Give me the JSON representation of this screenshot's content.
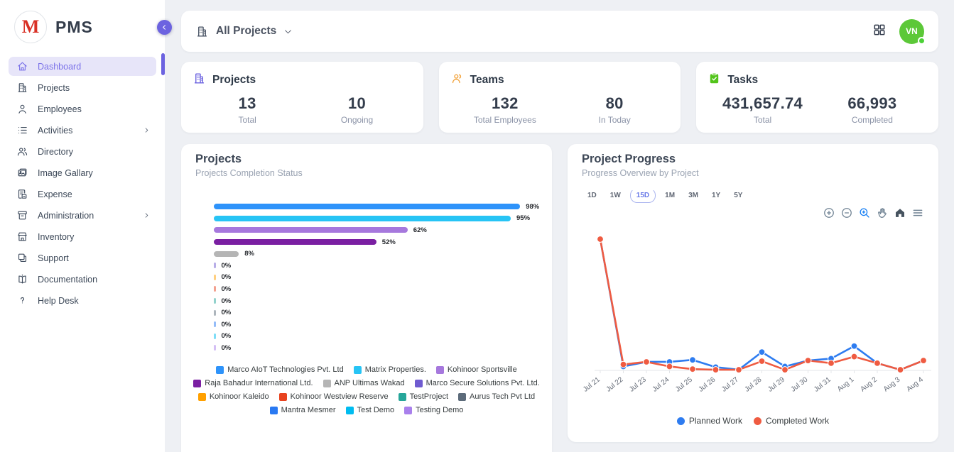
{
  "app": {
    "name": "PMS",
    "logo_letter": "M"
  },
  "sidebar": {
    "items": [
      {
        "label": "Dashboard",
        "icon": "home-icon",
        "active": true,
        "submenu": false
      },
      {
        "label": "Projects",
        "icon": "building-icon",
        "active": false,
        "submenu": false
      },
      {
        "label": "Employees",
        "icon": "person-icon",
        "active": false,
        "submenu": false
      },
      {
        "label": "Activities",
        "icon": "list-icon",
        "active": false,
        "submenu": true
      },
      {
        "label": "Directory",
        "icon": "people-icon",
        "active": false,
        "submenu": false
      },
      {
        "label": "Image Gallary",
        "icon": "image-icon",
        "active": false,
        "submenu": false
      },
      {
        "label": "Expense",
        "icon": "receipt-icon",
        "active": false,
        "submenu": false
      },
      {
        "label": "Administration",
        "icon": "archive-icon",
        "active": false,
        "submenu": true
      },
      {
        "label": "Inventory",
        "icon": "store-icon",
        "active": false,
        "submenu": false
      },
      {
        "label": "Support",
        "icon": "copy-icon",
        "active": false,
        "submenu": false
      },
      {
        "label": "Documentation",
        "icon": "book-icon",
        "active": false,
        "submenu": false
      },
      {
        "label": "Help Desk",
        "icon": "question-icon",
        "active": false,
        "submenu": false
      }
    ]
  },
  "topbar": {
    "scope_label": "All Projects",
    "avatar_initials": "VN",
    "avatar_color": "#5cc838"
  },
  "stats": [
    {
      "title": "Projects",
      "icon": "building-icon",
      "accent": "#6c63e0",
      "metrics": [
        {
          "value": "13",
          "label": "Total"
        },
        {
          "value": "10",
          "label": "Ongoing"
        }
      ]
    },
    {
      "title": "Teams",
      "icon": "team-icon",
      "accent": "#f2a33c",
      "metrics": [
        {
          "value": "132",
          "label": "Total Employees"
        },
        {
          "value": "80",
          "label": "In Today"
        }
      ]
    },
    {
      "title": "Tasks",
      "icon": "clipboard-check-icon",
      "accent": "#52c41a",
      "metrics": [
        {
          "value": "431,657.74",
          "label": "Total"
        },
        {
          "value": "66,993",
          "label": "Completed"
        }
      ]
    }
  ],
  "projects_panel": {
    "title": "Projects",
    "subtitle": "Projects Completion Status"
  },
  "progress_panel": {
    "title": "Project Progress",
    "subtitle": "Progress Overview by Project",
    "ranges": [
      "1D",
      "1W",
      "15D",
      "1M",
      "3M",
      "1Y",
      "5Y"
    ],
    "selected_range": "15D",
    "toolbar_icons": [
      "zoom-in-icon",
      "zoom-out-icon",
      "selection-zoom-icon",
      "pan-icon",
      "home-icon-solid",
      "menu-icon"
    ]
  },
  "chart_data": [
    {
      "type": "bar",
      "orientation": "horizontal",
      "title": "Projects Completion Status",
      "unit": "%",
      "xlim": [
        0,
        100
      ],
      "categories": [
        "Marco AIoT Technologies Pvt. Ltd",
        "Matrix Properties.",
        "Kohinoor Sportsville",
        "Raja Bahadur International Ltd.",
        "ANP Ultimas Wakad",
        "Marco Secure Solutions Pvt. Ltd.",
        "Kohinoor Kaleido",
        "Kohinoor Westview Reserve",
        "TestProject",
        "Aurus Tech Pvt Ltd",
        "Mantra Mesmer",
        "Test Demo",
        "Testing Demo"
      ],
      "values": [
        98,
        95,
        62,
        52,
        8,
        0,
        0,
        0,
        0,
        0,
        0,
        0,
        0
      ],
      "value_labels": [
        "98%",
        "95%",
        "62%",
        "52%",
        "8%",
        "0%",
        "0%",
        "0%",
        "0%",
        "0%",
        "0%",
        "0%",
        "0%"
      ],
      "colors": [
        "#2e93fa",
        "#27c4f5",
        "#a678dd",
        "#7a1fa2",
        "#b5b5b5",
        "#6f5bd0",
        "#ffa000",
        "#e8431f",
        "#26a69a",
        "#5c6b7a",
        "#2979f2",
        "#00bcf0",
        "#a980ec"
      ],
      "legend_position": "bottom"
    },
    {
      "type": "line",
      "title": "Progress Overview by Project",
      "x": [
        "Jul 21",
        "Jul 22",
        "Jul 23",
        "Jul 24",
        "Jul 25",
        "Jul 26",
        "Jul 27",
        "Jul 28",
        "Jul 29",
        "Jul 30",
        "Jul 31",
        "Aug 1",
        "Aug 2",
        "Aug 3",
        "Aug 4"
      ],
      "series": [
        {
          "name": "Planned Work",
          "color": "#2e7cf0",
          "values": [
            100,
            3,
            6.5,
            6.5,
            8,
            2.5,
            0.5,
            14,
            3,
            7.5,
            9,
            18.5,
            5.5,
            0.5,
            7.5
          ]
        },
        {
          "name": "Completed Work",
          "color": "#ef5b41",
          "values": [
            100,
            4.5,
            6.5,
            3,
            1,
            0.5,
            0.5,
            7,
            0.5,
            7.5,
            5.5,
            10.5,
            5.5,
            0.5,
            7.5
          ]
        }
      ],
      "ylim": [
        0,
        105
      ],
      "grid": false,
      "legend_position": "bottom"
    }
  ]
}
